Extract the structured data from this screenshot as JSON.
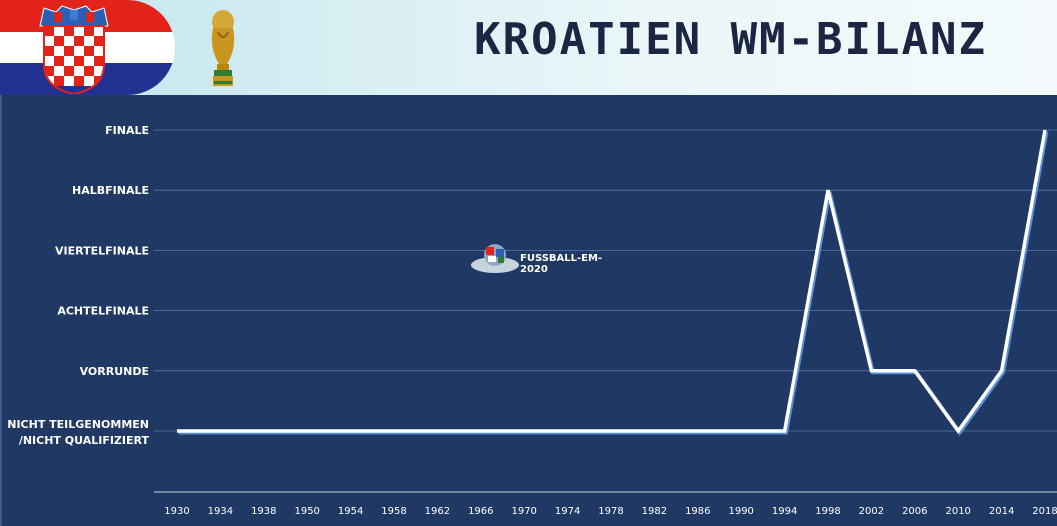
{
  "header": {
    "title": "KROATIEN WM-BILANZ",
    "flag_icon": "croatia-flag-icon",
    "trophy_icon": "world-cup-trophy-icon"
  },
  "watermark": {
    "text": "FUSSBALL-EM-2020"
  },
  "colors": {
    "background": "#1f3864",
    "line": "#ffffff",
    "line_shadow": "#5b8fd8",
    "grid": "#5a74a6"
  },
  "chart_data": {
    "type": "line",
    "title": "KROATIEN WM-BILANZ",
    "categories": [
      "1930",
      "1934",
      "1938",
      "1950",
      "1954",
      "1958",
      "1962",
      "1966",
      "1970",
      "1974",
      "1978",
      "1982",
      "1986",
      "1990",
      "1994",
      "1998",
      "2002",
      "2006",
      "2010",
      "2014",
      "2018"
    ],
    "y_categories": [
      "NICHT TEILGENOMMEN /NICHT QUALIFIZIERT",
      "VORRUNDE",
      "ACHTELFINALE",
      "VIERTELFINALE",
      "HALBFINALE",
      "FINALE"
    ],
    "y_labels_lines": [
      [
        "NICHT TEILGENOMMEN",
        "/NICHT QUALIFIZIERT"
      ],
      [
        "VORRUNDE"
      ],
      [
        "ACHTELFINALE"
      ],
      [
        "VIERTELFINALE"
      ],
      [
        "HALBFINALE"
      ],
      [
        "FINALE"
      ]
    ],
    "values": [
      0,
      0,
      0,
      0,
      0,
      0,
      0,
      0,
      0,
      0,
      0,
      0,
      0,
      0,
      0,
      4,
      1,
      1,
      0,
      1,
      5
    ],
    "ylim": [
      0,
      5
    ],
    "grid": true,
    "legend": "none"
  }
}
